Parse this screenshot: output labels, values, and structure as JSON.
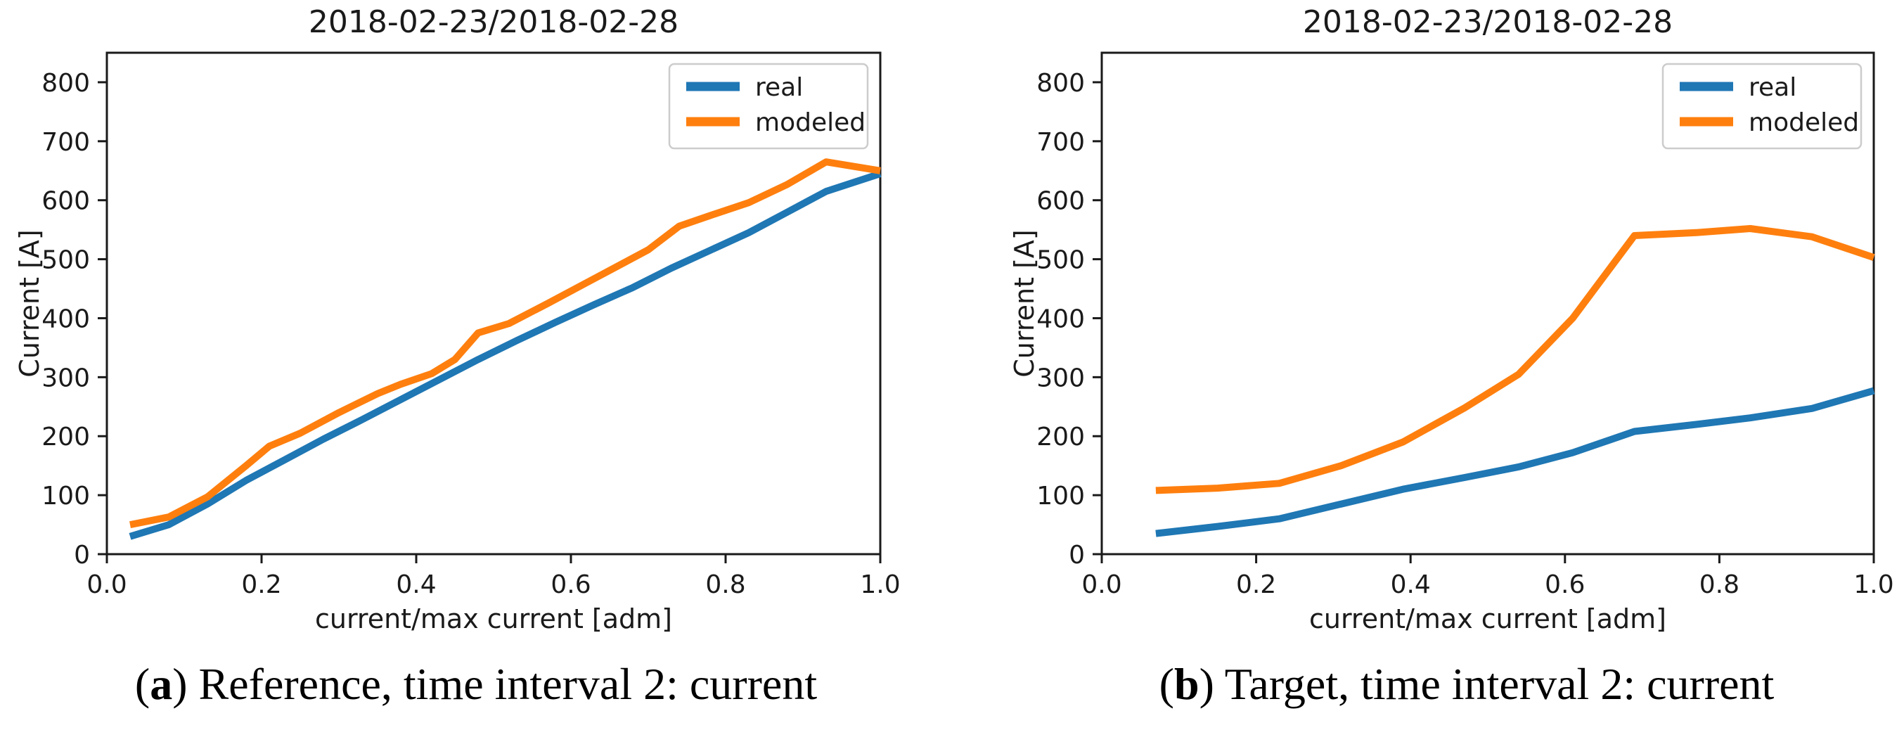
{
  "page": {
    "background": "#ffffff",
    "ink": "#1a1a1a"
  },
  "captions": {
    "a": {
      "open": "(",
      "letter": "a",
      "rest": ") Reference, time interval 2: current"
    },
    "b": {
      "open": "(",
      "letter": "b",
      "rest": ") Target, time interval 2: current"
    }
  },
  "chart_data": [
    {
      "id": "reference-current",
      "type": "line",
      "title": "2018-02-23/2018-02-28",
      "xlabel": "current/max current [adm]",
      "ylabel": "Current [A]",
      "xlim": [
        0.0,
        1.0
      ],
      "ylim": [
        0,
        850
      ],
      "xticks": [
        0.0,
        0.2,
        0.4,
        0.6,
        0.8,
        1.0
      ],
      "yticks": [
        0,
        100,
        200,
        300,
        400,
        500,
        600,
        700,
        800
      ],
      "grid": false,
      "legend": {
        "position": "top-right",
        "entries": [
          "real",
          "modeled"
        ]
      },
      "series": [
        {
          "name": "real",
          "color": "#1f77b4",
          "points": [
            [
              0.03,
              30
            ],
            [
              0.08,
              50
            ],
            [
              0.13,
              85
            ],
            [
              0.18,
              125
            ],
            [
              0.23,
              160
            ],
            [
              0.28,
              195
            ],
            [
              0.33,
              228
            ],
            [
              0.38,
              262
            ],
            [
              0.43,
              296
            ],
            [
              0.48,
              330
            ],
            [
              0.53,
              362
            ],
            [
              0.58,
              393
            ],
            [
              0.63,
              423
            ],
            [
              0.68,
              452
            ],
            [
              0.73,
              485
            ],
            [
              0.78,
              515
            ],
            [
              0.83,
              545
            ],
            [
              0.88,
              580
            ],
            [
              0.93,
              615
            ],
            [
              1.0,
              645
            ]
          ]
        },
        {
          "name": "modeled",
          "color": "#ff7f0e",
          "points": [
            [
              0.03,
              50
            ],
            [
              0.08,
              63
            ],
            [
              0.13,
              97
            ],
            [
              0.18,
              150
            ],
            [
              0.21,
              183
            ],
            [
              0.25,
              205
            ],
            [
              0.3,
              240
            ],
            [
              0.35,
              272
            ],
            [
              0.38,
              288
            ],
            [
              0.42,
              306
            ],
            [
              0.45,
              330
            ],
            [
              0.48,
              375
            ],
            [
              0.52,
              391
            ],
            [
              0.57,
              425
            ],
            [
              0.62,
              460
            ],
            [
              0.66,
              488
            ],
            [
              0.7,
              516
            ],
            [
              0.74,
              556
            ],
            [
              0.78,
              574
            ],
            [
              0.83,
              596
            ],
            [
              0.88,
              627
            ],
            [
              0.93,
              665
            ],
            [
              1.0,
              650
            ]
          ]
        }
      ]
    },
    {
      "id": "target-current",
      "type": "line",
      "title": "2018-02-23/2018-02-28",
      "xlabel": "current/max current [adm]",
      "ylabel": "Current [A]",
      "xlim": [
        0.0,
        1.0
      ],
      "ylim": [
        0,
        850
      ],
      "xticks": [
        0.0,
        0.2,
        0.4,
        0.6,
        0.8,
        1.0
      ],
      "yticks": [
        0,
        100,
        200,
        300,
        400,
        500,
        600,
        700,
        800
      ],
      "grid": false,
      "legend": {
        "position": "top-right",
        "entries": [
          "real",
          "modeled"
        ]
      },
      "series": [
        {
          "name": "real",
          "color": "#1f77b4",
          "points": [
            [
              0.07,
              35
            ],
            [
              0.15,
              47
            ],
            [
              0.23,
              60
            ],
            [
              0.31,
              85
            ],
            [
              0.39,
              110
            ],
            [
              0.47,
              130
            ],
            [
              0.54,
              148
            ],
            [
              0.61,
              172
            ],
            [
              0.69,
              208
            ],
            [
              0.77,
              220
            ],
            [
              0.84,
              231
            ],
            [
              0.92,
              247
            ],
            [
              1.0,
              277
            ]
          ]
        },
        {
          "name": "modeled",
          "color": "#ff7f0e",
          "points": [
            [
              0.07,
              108
            ],
            [
              0.15,
              112
            ],
            [
              0.23,
              120
            ],
            [
              0.31,
              150
            ],
            [
              0.39,
              190
            ],
            [
              0.47,
              248
            ],
            [
              0.54,
              305
            ],
            [
              0.61,
              400
            ],
            [
              0.69,
              540
            ],
            [
              0.77,
              545
            ],
            [
              0.84,
              552
            ],
            [
              0.92,
              538
            ],
            [
              1.0,
              503
            ]
          ]
        }
      ]
    }
  ]
}
